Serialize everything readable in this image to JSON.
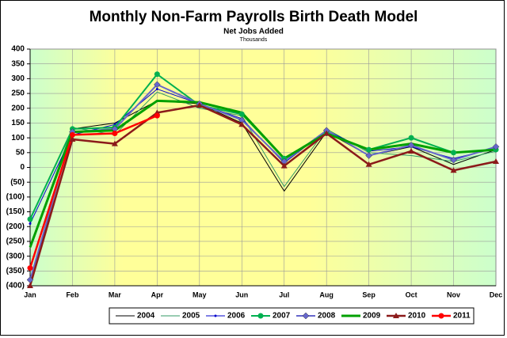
{
  "chart_data": {
    "type": "line",
    "title": "Monthly Non-Farm Payrolls Birth Death Model",
    "subtitle": "Net Jobs Added",
    "unit_label": "Thousands",
    "categories": [
      "Jan",
      "Feb",
      "Mar",
      "Apr",
      "May",
      "Jun",
      "Jul",
      "Aug",
      "Sep",
      "Oct",
      "Nov",
      "Dec"
    ],
    "ylim": [
      -400,
      400
    ],
    "yticks": [
      {
        "value": -400,
        "label": "(400)"
      },
      {
        "value": -350,
        "label": "(350)"
      },
      {
        "value": -300,
        "label": "(300)"
      },
      {
        "value": -250,
        "label": "(250)"
      },
      {
        "value": -200,
        "label": "(200)"
      },
      {
        "value": -150,
        "label": "(150)"
      },
      {
        "value": -100,
        "label": "(100)"
      },
      {
        "value": -50,
        "label": "(50)"
      },
      0,
      50,
      100,
      150,
      200,
      250,
      300,
      350,
      400
    ],
    "negative_tick_color": "#ff0000",
    "grid": true,
    "legend": "bottom",
    "series": [
      {
        "name": "2004",
        "color": "#000000",
        "width": 1,
        "marker": null,
        "values": [
          -400,
          130,
          150,
          225,
          215,
          150,
          -80,
          120,
          40,
          70,
          10,
          60
        ]
      },
      {
        "name": "2005",
        "color": "#339966",
        "width": 1,
        "marker": null,
        "values": [
          -270,
          135,
          110,
          255,
          200,
          175,
          -65,
          130,
          50,
          40,
          20,
          55
        ]
      },
      {
        "name": "2006",
        "color": "#0000cc",
        "width": 1,
        "marker": "dot",
        "values": [
          -190,
          110,
          145,
          265,
          215,
          165,
          15,
          125,
          55,
          70,
          30,
          65
        ]
      },
      {
        "name": "2007",
        "color": "#00b050",
        "width": 2,
        "marker": "circle",
        "values": [
          -175,
          130,
          135,
          315,
          210,
          180,
          30,
          115,
          60,
          100,
          50,
          60
        ]
      },
      {
        "name": "2008",
        "color": "#6666cc",
        "width": 2,
        "marker": "diamond",
        "values": [
          -380,
          120,
          130,
          280,
          215,
          160,
          20,
          125,
          40,
          75,
          25,
          70
        ]
      },
      {
        "name": "2009",
        "color": "#00a000",
        "width": 3,
        "marker": null,
        "values": [
          -270,
          120,
          125,
          225,
          220,
          185,
          30,
          115,
          60,
          80,
          50,
          60
        ]
      },
      {
        "name": "2010",
        "color": "#8b1a1a",
        "width": 2.5,
        "marker": "triangle",
        "values": [
          -400,
          95,
          80,
          185,
          210,
          145,
          5,
          115,
          10,
          55,
          -10,
          20
        ]
      },
      {
        "name": "2011",
        "color": "#ff0000",
        "width": 2.5,
        "marker": "circle",
        "values": [
          -340,
          110,
          115,
          175,
          null,
          null,
          null,
          null,
          null,
          null,
          null,
          null
        ]
      }
    ]
  }
}
